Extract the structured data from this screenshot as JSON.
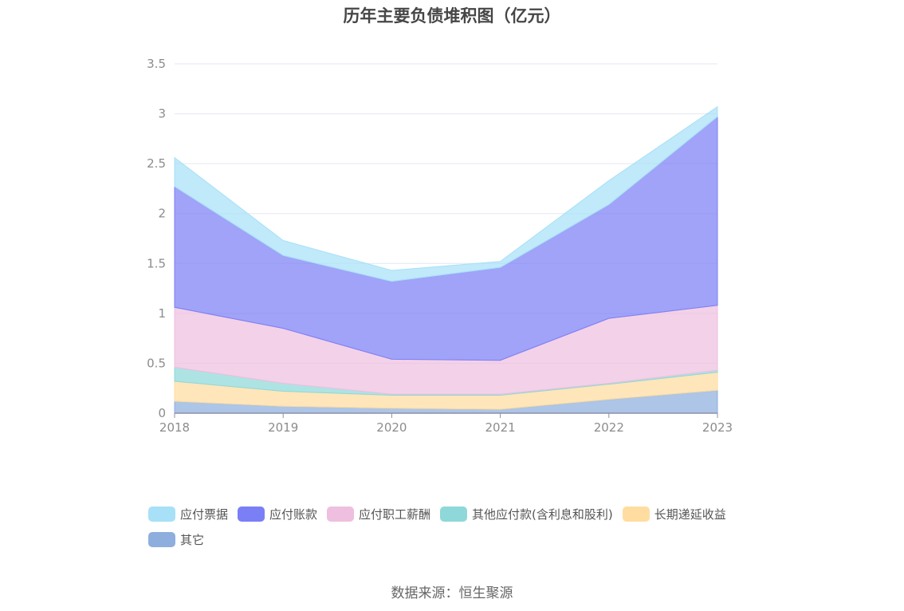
{
  "chart_data": {
    "type": "area",
    "stacked": true,
    "title": "历年主要负债堆积图（亿元）",
    "categories": [
      "2018",
      "2019",
      "2020",
      "2021",
      "2022",
      "2023"
    ],
    "ylim": [
      0,
      3.5
    ],
    "yticks": [
      "0",
      "0.5",
      "1",
      "1.5",
      "2",
      "2.5",
      "3",
      "3.5"
    ],
    "grid": true,
    "legend_position": "bottom-left",
    "series": [
      {
        "name": "其它",
        "color": "#8eaedd",
        "values": [
          0.12,
          0.07,
          0.05,
          0.04,
          0.14,
          0.23
        ]
      },
      {
        "name": "长期递延收益",
        "color": "#ffdca0",
        "values": [
          0.2,
          0.15,
          0.13,
          0.14,
          0.15,
          0.18
        ]
      },
      {
        "name": "其他应付款(含利息和股利)",
        "color": "#8fd8d9",
        "values": [
          0.14,
          0.08,
          0.01,
          0.01,
          0.01,
          0.02
        ]
      },
      {
        "name": "应付职工薪酬",
        "color": "#eebfdf",
        "values": [
          0.6,
          0.55,
          0.35,
          0.34,
          0.65,
          0.65
        ]
      },
      {
        "name": "应付账款",
        "color": "#7b7ff5",
        "values": [
          1.21,
          0.73,
          0.78,
          0.93,
          1.14,
          1.89
        ]
      },
      {
        "name": "应付票据",
        "color": "#a8e0f8",
        "values": [
          0.29,
          0.15,
          0.11,
          0.06,
          0.24,
          0.1
        ]
      }
    ]
  },
  "legend_order": [
    "应付票据",
    "应付账款",
    "应付职工薪酬",
    "其他应付款(含利息和股利)",
    "长期递延收益",
    "其它"
  ],
  "source": "数据来源：恒生聚源"
}
